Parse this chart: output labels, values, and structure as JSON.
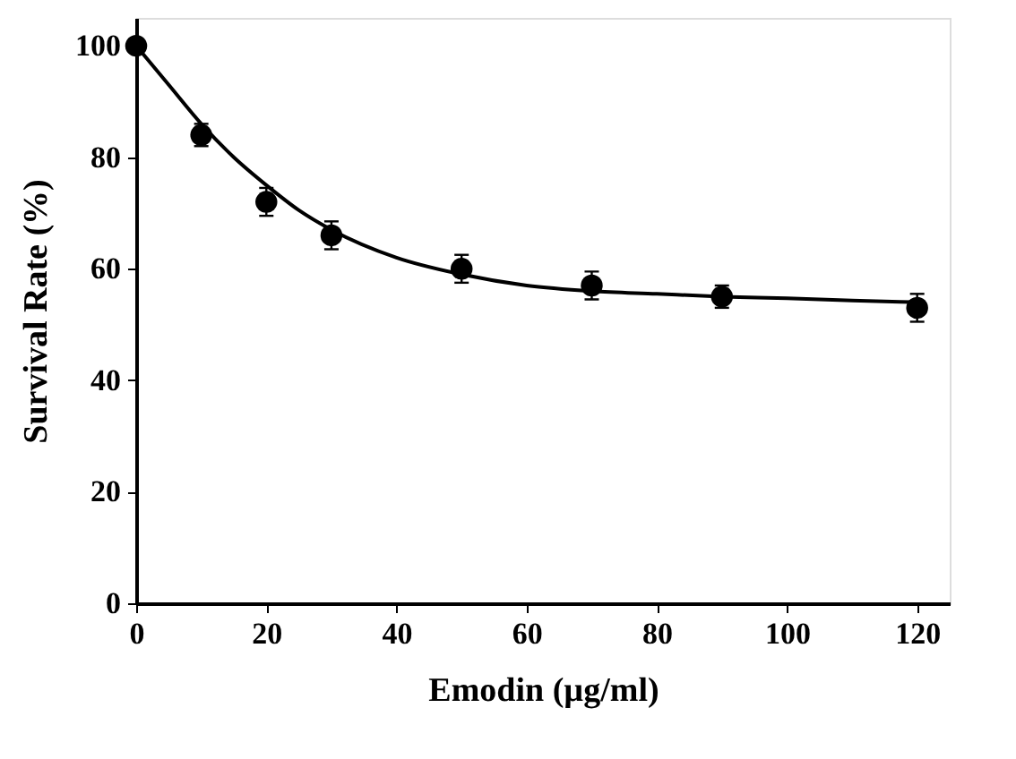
{
  "chart_data": {
    "type": "scatter",
    "xlabel": "Emodin (µg/ml)",
    "ylabel": "Survival Rate (%)",
    "xlim": [
      0,
      125
    ],
    "ylim": [
      0,
      105
    ],
    "xticks": [
      0,
      20,
      40,
      60,
      80,
      100,
      120
    ],
    "yticks": [
      0,
      20,
      40,
      60,
      80,
      100
    ],
    "series": [
      {
        "color": "#000000",
        "marker": "circle",
        "x": [
          0,
          10,
          20,
          30,
          50,
          70,
          90,
          120
        ],
        "values": [
          100,
          84,
          72,
          66,
          60,
          57,
          55,
          53
        ],
        "errors": [
          null,
          2,
          2.5,
          2.5,
          2.5,
          2.5,
          2,
          2.5
        ]
      },
      {
        "type": "line",
        "color": "#000000",
        "marker": "none",
        "line_style": "solid",
        "x": [
          0,
          5,
          10,
          15,
          20,
          25,
          30,
          40,
          50,
          60,
          70,
          80,
          90,
          100,
          110,
          120
        ],
        "values": [
          100,
          93,
          86,
          80,
          75,
          70.5,
          67,
          62,
          59,
          57,
          56,
          55.5,
          55,
          54.7,
          54.3,
          54
        ]
      }
    ]
  }
}
